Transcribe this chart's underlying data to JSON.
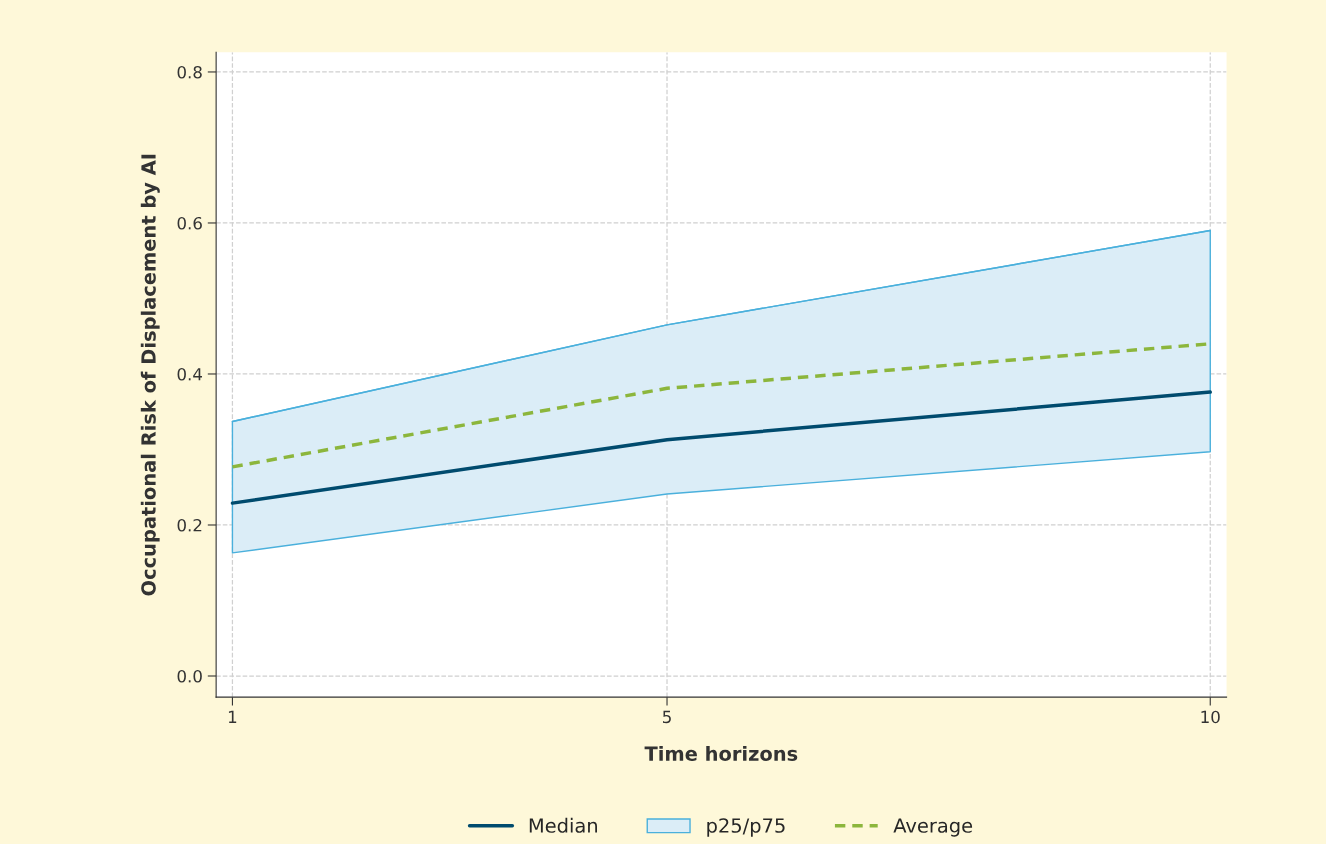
{
  "chart_data": {
    "type": "line",
    "xlabel": "Time horizons",
    "ylabel": "Occupational Risk of Displacement by AI",
    "x": [
      1,
      5,
      10
    ],
    "series": [
      {
        "name": "Median",
        "color": "#004b6e",
        "line_style": "solid",
        "values": [
          0.229,
          0.313,
          0.376
        ]
      },
      {
        "name": "p25/p75",
        "type": "line",
        "color": "#4ab0dc",
        "values": [
          0.337,
          0.465,
          0.59
        ],
        "lower": [
          0.163,
          0.241,
          0.297
        ],
        "upper": [
          0.337,
          0.465,
          0.59
        ]
      },
      {
        "name": "Average",
        "color": "#8cb63c",
        "line_style": "dashed",
        "values": [
          0.277,
          0.381,
          0.44
        ]
      }
    ],
    "xlim": [
      0.85,
      10.15
    ],
    "xticks": [
      1,
      5,
      10
    ],
    "ylim": [
      -0.028,
      0.826
    ],
    "yticks": [
      {
        "value": 0,
        "label": "0.0"
      },
      0.2,
      0.4,
      0.6,
      0.8
    ],
    "grid": true,
    "legend": "bottom"
  }
}
